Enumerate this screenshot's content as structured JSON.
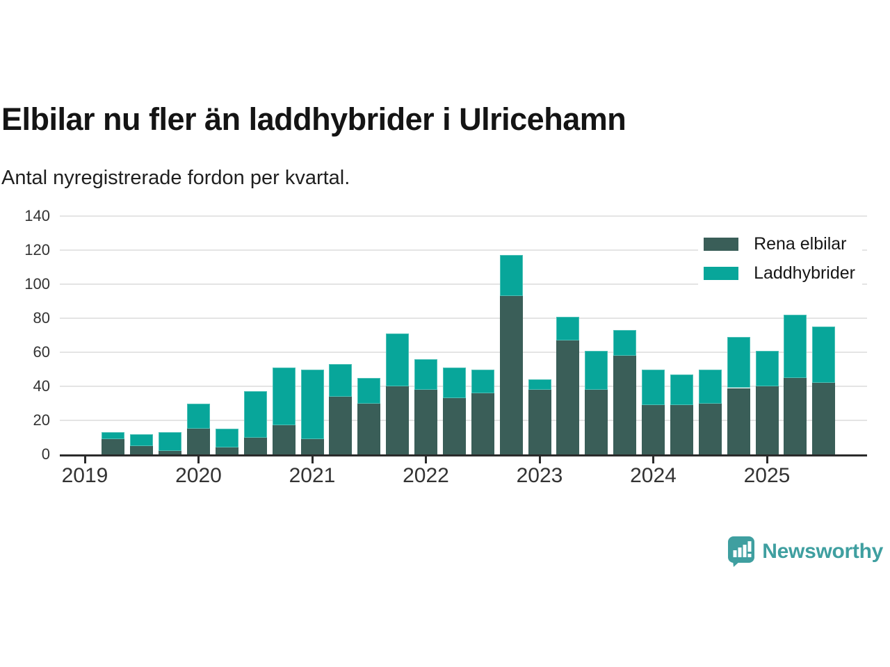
{
  "header": {
    "title": "Elbilar nu fler än laddhybrider i Ulricehamn",
    "subtitle": "Antal nyregistrerade fordon per kvartal."
  },
  "legend": {
    "items": [
      {
        "label": "Rena elbilar",
        "color": "#3a5e58"
      },
      {
        "label": "Laddhybrider",
        "color": "#08a69a"
      }
    ]
  },
  "footer": {
    "brand": "Newsworthy",
    "brand_color": "#3f9fa0"
  },
  "colors": {
    "dark_series": "#3a5e58",
    "light_series": "#08a69a",
    "light_series_border": "#4cc0b6",
    "gridline": "#e4e4e4",
    "axis": "#2b2b2b",
    "text": "#333333"
  },
  "chart_data": {
    "type": "bar",
    "stacked": true,
    "title": "Elbilar nu fler än laddhybrider i Ulricehamn",
    "subtitle": "Antal nyregistrerade fordon per kvartal.",
    "xlabel": "",
    "ylabel": "",
    "ylim": [
      0,
      140
    ],
    "yticks": [
      0,
      20,
      40,
      60,
      80,
      100,
      120,
      140
    ],
    "xticks": [
      "2019",
      "2020",
      "2021",
      "2022",
      "2023",
      "2024",
      "2025"
    ],
    "grid": true,
    "legend_position": "top-right",
    "categories": [
      "2019-Q2",
      "2019-Q3",
      "2019-Q4",
      "2020-Q1",
      "2020-Q2",
      "2020-Q3",
      "2020-Q4",
      "2021-Q1",
      "2021-Q2",
      "2021-Q3",
      "2021-Q4",
      "2022-Q1",
      "2022-Q2",
      "2022-Q3",
      "2022-Q4",
      "2023-Q1",
      "2023-Q2",
      "2023-Q3",
      "2023-Q4",
      "2024-Q1",
      "2024-Q2",
      "2024-Q3",
      "2024-Q4",
      "2025-Q1",
      "2025-Q2",
      "2025-Q3"
    ],
    "series": [
      {
        "name": "Rena elbilar",
        "color": "#3a5e58",
        "values": [
          9,
          5,
          2,
          15,
          4,
          10,
          17,
          9,
          34,
          30,
          40,
          38,
          33,
          36,
          93,
          38,
          67,
          38,
          58,
          29,
          29,
          30,
          39,
          40,
          45,
          42
        ]
      },
      {
        "name": "Laddhybrider",
        "color": "#08a69a",
        "values": [
          4,
          7,
          11,
          15,
          11,
          27,
          34,
          41,
          19,
          15,
          31,
          18,
          18,
          14,
          24,
          6,
          14,
          23,
          15,
          21,
          18,
          20,
          30,
          21,
          37,
          33
        ]
      }
    ],
    "totals": [
      13,
      12,
      13,
      30,
      15,
      37,
      51,
      50,
      53,
      45,
      71,
      56,
      51,
      50,
      117,
      44,
      81,
      61,
      73,
      50,
      47,
      50,
      69,
      61,
      82,
      75
    ]
  }
}
